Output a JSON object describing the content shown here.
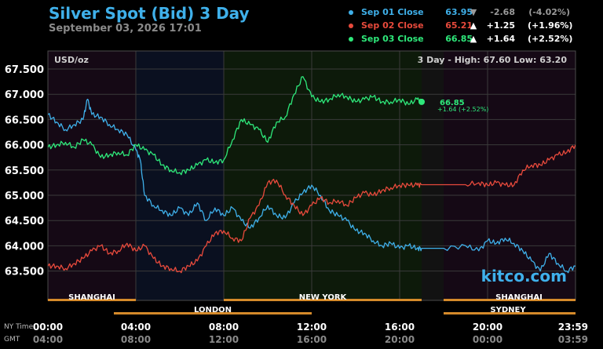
{
  "header": {
    "title": "Silver Spot (Bid) 3 Day",
    "timestamp": "September 03, 2026 17:01"
  },
  "legend": [
    {
      "name": "Sep 01 Close",
      "value": "63.95",
      "direction": "down",
      "change": "-2.68",
      "pct": "(-4.02%)",
      "color": "#3fb0ea"
    },
    {
      "name": "Sep 02 Close",
      "value": "65.21",
      "direction": "up",
      "change": "+1.25",
      "pct": "(+1.96%)",
      "color": "#e84a3c"
    },
    {
      "name": "Sep 03 Close",
      "value": "66.85",
      "direction": "up",
      "change": "+1.64",
      "pct": "(+2.52%)",
      "color": "#2ee87a"
    }
  ],
  "arrows": {
    "up": "▲",
    "down": "▼"
  },
  "plot": {
    "unit_label": "USD/oz",
    "range_label": "3 Day - High: 67.60  Low: 63.20",
    "watermark": "kitco.com",
    "last_value_label": "66.85",
    "last_change_label": "+1.64 (+2.52%)"
  },
  "sessions": {
    "row1": [
      "SHANGHAI",
      "NEW YORK",
      "SHANGHAI"
    ],
    "row2": [
      "LONDON",
      "SYDNEY"
    ]
  },
  "axis": {
    "ny_label": "NY Time",
    "gmt_label": "GMT",
    "ny_ticks": [
      "00:00",
      "04:00",
      "08:00",
      "12:00",
      "16:00",
      "20:00",
      "23:59"
    ],
    "gmt_ticks": [
      "04:00",
      "08:00",
      "12:00",
      "16:00",
      "20:00",
      "00:00",
      "03:59"
    ]
  },
  "chart_data": {
    "type": "line",
    "title": "Silver Spot (Bid) 3 Day",
    "ylabel": "USD/oz",
    "y_ticks": [
      63.5,
      64.0,
      64.5,
      65.0,
      65.5,
      66.0,
      66.5,
      67.0,
      67.5
    ],
    "ylim": [
      63.0,
      67.6
    ],
    "xlim": [
      0,
      24
    ],
    "grid": true,
    "legend_position": "top-right",
    "series": [
      {
        "name": "Sep 01 Close",
        "color": "#3fb0ea",
        "x": [
          0,
          0.4,
          0.8,
          1.2,
          1.6,
          1.8,
          2.0,
          2.4,
          2.8,
          3.2,
          3.6,
          4.0,
          4.2,
          4.4,
          4.8,
          5.2,
          5.6,
          6.0,
          6.4,
          6.8,
          7.2,
          7.6,
          8.0,
          8.4,
          8.8,
          9.2,
          9.6,
          10.0,
          10.4,
          10.8,
          11.2,
          11.6,
          12.0,
          12.4,
          12.8,
          13.2,
          13.6,
          14.0,
          14.4,
          14.8,
          15.2,
          15.6,
          16.0,
          16.4,
          16.8,
          17.0,
          18.0,
          19.0,
          19.6,
          20.0,
          20.4,
          20.8,
          21.2,
          21.6,
          22.0,
          22.4,
          22.8,
          23.2,
          23.6,
          24.0
        ],
        "y": [
          66.6,
          66.45,
          66.3,
          66.4,
          66.5,
          66.9,
          66.6,
          66.55,
          66.4,
          66.3,
          66.2,
          65.9,
          65.7,
          65.0,
          64.8,
          64.7,
          64.6,
          64.75,
          64.6,
          64.85,
          64.5,
          64.75,
          64.6,
          64.75,
          64.5,
          64.35,
          64.55,
          64.8,
          64.6,
          64.55,
          64.85,
          65.05,
          65.2,
          65.0,
          64.7,
          64.6,
          64.5,
          64.3,
          64.25,
          64.1,
          64.0,
          64.05,
          63.95,
          64.0,
          63.95,
          63.95,
          63.95,
          64.0,
          63.9,
          64.1,
          64.05,
          64.15,
          64.05,
          63.9,
          63.7,
          63.5,
          63.85,
          63.65,
          63.5,
          63.6
        ]
      },
      {
        "name": "Sep 02 Close",
        "color": "#e84a3c",
        "x": [
          0,
          0.4,
          0.8,
          1.2,
          1.6,
          2.0,
          2.4,
          2.8,
          3.2,
          3.6,
          4.0,
          4.4,
          4.8,
          5.2,
          5.6,
          6.0,
          6.4,
          6.8,
          7.2,
          7.6,
          8.0,
          8.4,
          8.8,
          9.2,
          9.6,
          10.0,
          10.4,
          10.8,
          11.2,
          11.6,
          12.0,
          12.4,
          12.8,
          13.2,
          13.6,
          14.0,
          14.4,
          14.8,
          15.2,
          15.6,
          16.0,
          16.4,
          16.8,
          17.0,
          18.0,
          19.0,
          19.6,
          20.0,
          20.4,
          20.8,
          21.2,
          21.6,
          22.0,
          22.4,
          22.8,
          23.2,
          23.6,
          24.0
        ],
        "y": [
          63.6,
          63.6,
          63.55,
          63.65,
          63.75,
          63.9,
          64.0,
          63.85,
          63.9,
          64.05,
          63.9,
          64.0,
          63.75,
          63.6,
          63.55,
          63.5,
          63.6,
          63.7,
          64.0,
          64.25,
          64.3,
          64.15,
          64.1,
          64.55,
          64.8,
          65.25,
          65.3,
          65.0,
          64.8,
          64.6,
          64.8,
          64.95,
          64.85,
          64.9,
          64.8,
          64.95,
          65.05,
          65.0,
          65.1,
          65.15,
          65.2,
          65.2,
          65.2,
          65.21,
          65.21,
          65.21,
          65.25,
          65.2,
          65.25,
          65.2,
          65.2,
          65.5,
          65.6,
          65.6,
          65.7,
          65.8,
          65.85,
          66.0
        ]
      },
      {
        "name": "Sep 03 Close",
        "color": "#2ee87a",
        "x": [
          0,
          0.4,
          0.8,
          1.2,
          1.6,
          2.0,
          2.4,
          2.8,
          3.2,
          3.6,
          4.0,
          4.4,
          4.8,
          5.2,
          5.6,
          6.0,
          6.4,
          6.8,
          7.2,
          7.6,
          8.0,
          8.4,
          8.8,
          9.2,
          9.6,
          10.0,
          10.4,
          10.8,
          11.2,
          11.6,
          12.0,
          12.4,
          12.8,
          13.2,
          13.6,
          14.0,
          14.4,
          14.8,
          15.2,
          15.6,
          16.0,
          16.4,
          16.8,
          17.0
        ],
        "y": [
          65.95,
          66.0,
          66.05,
          65.95,
          66.1,
          66.0,
          65.75,
          65.8,
          65.85,
          65.8,
          66.0,
          65.9,
          65.8,
          65.6,
          65.5,
          65.45,
          65.5,
          65.6,
          65.7,
          65.65,
          65.7,
          66.1,
          66.5,
          66.4,
          66.3,
          66.05,
          66.45,
          66.55,
          67.0,
          67.35,
          66.95,
          66.85,
          66.9,
          67.0,
          66.95,
          66.85,
          66.9,
          66.95,
          66.85,
          66.85,
          66.9,
          66.8,
          66.9,
          66.85
        ]
      }
    ]
  }
}
